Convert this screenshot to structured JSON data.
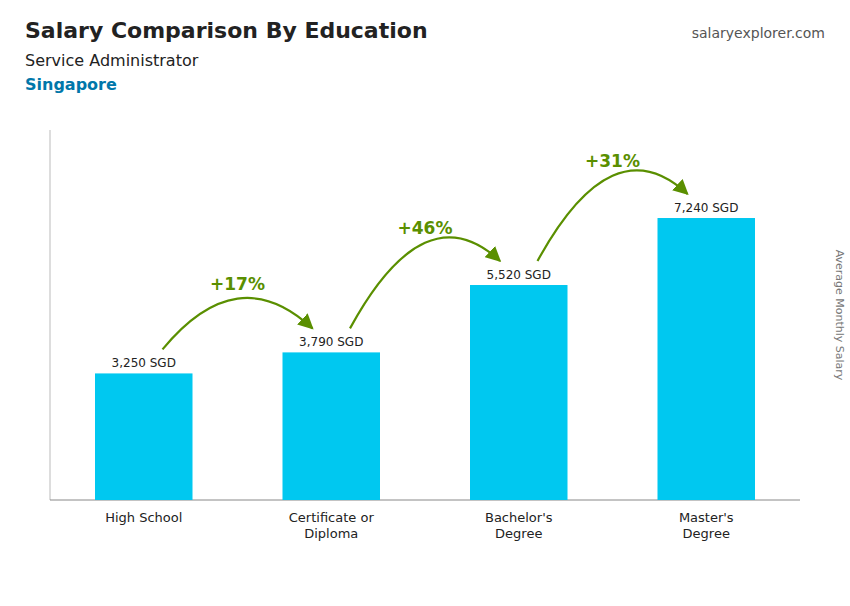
{
  "chart_data": {
    "type": "bar",
    "title": "Salary Comparison By Education",
    "subtitle": "Service Administrator",
    "ylabel": "Average Monthly Salary",
    "categories": [
      "High School",
      "Certificate or\nDiploma",
      "Bachelor's\nDegree",
      "Master's\nDegree"
    ],
    "values": [
      3250,
      3790,
      5520,
      7240
    ],
    "value_labels": [
      "3,250 SGD",
      "3,790 SGD",
      "5,520 SGD",
      "7,240 SGD"
    ],
    "data_labels": true,
    "color": "#00C8F0",
    "ylim": [
      0,
      9500
    ],
    "grid": false,
    "tick_labels": false,
    "annotations": [
      {
        "text": "Singapore"
      },
      {
        "text": "salaryexplorer.com"
      },
      {
        "text": "+17%",
        "from": 0,
        "to": 1
      },
      {
        "text": "+46%",
        "from": 1,
        "to": 2
      },
      {
        "text": "+31%",
        "from": 2,
        "to": 3
      }
    ]
  }
}
